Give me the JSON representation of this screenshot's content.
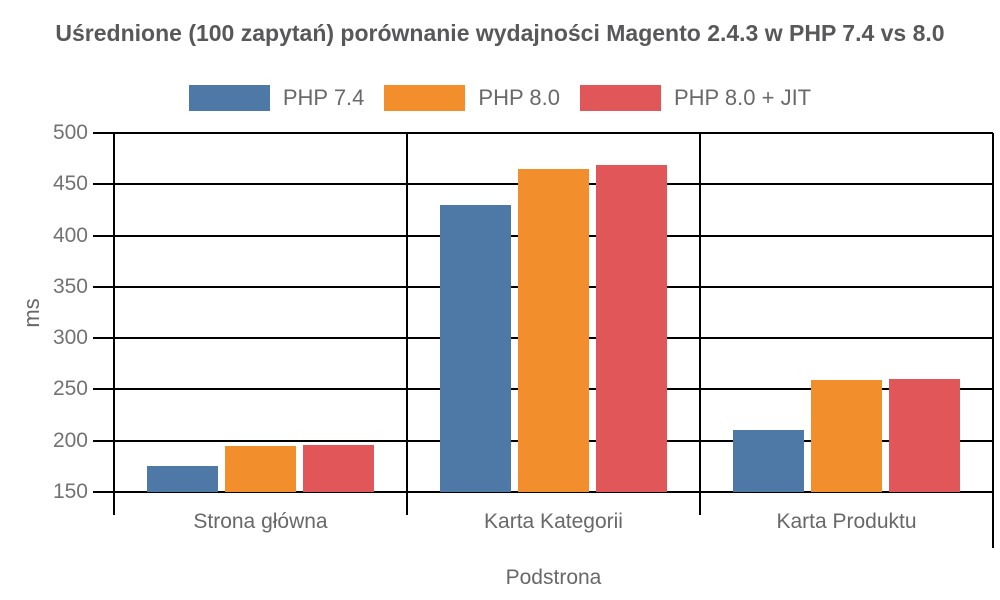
{
  "chart_data": {
    "type": "bar",
    "title": "Uśrednione (100 zapytań) porównanie wydajności Magento 2.4.3 w PHP 7.4 vs 8.0",
    "categories": [
      "Strona główna",
      "Karta Kategorii",
      "Karta Produktu"
    ],
    "series": [
      {
        "name": "PHP 7.4",
        "color": "#4e79a7",
        "values": [
          175,
          430,
          210
        ]
      },
      {
        "name": "PHP 8.0",
        "color": "#f28e2b",
        "values": [
          195,
          465,
          259
        ]
      },
      {
        "name": "PHP 8.0 + JIT",
        "color": "#e15759",
        "values": [
          196,
          469,
          260
        ]
      }
    ],
    "xlabel": "Podstrona",
    "ylabel": "ms",
    "ylim": [
      150,
      500
    ],
    "yticks": [
      150,
      200,
      250,
      300,
      350,
      400,
      450,
      500
    ],
    "grid": true,
    "legend_position": "top",
    "axis_color": "#000000",
    "title_color": "#58585a",
    "tick_label_color": "#727274",
    "label_color": "#68686a"
  }
}
